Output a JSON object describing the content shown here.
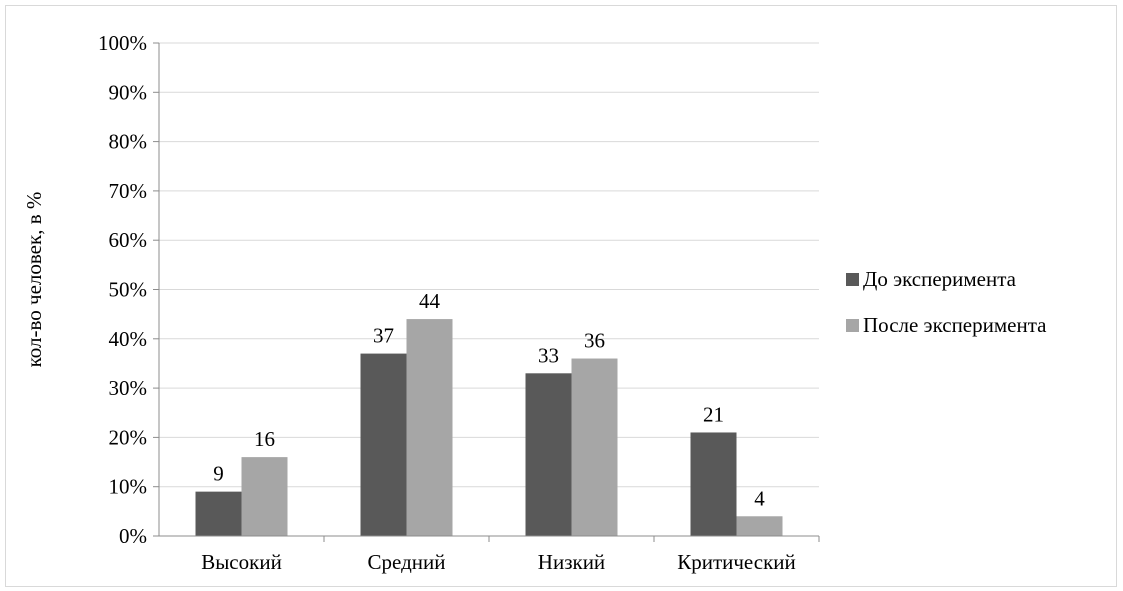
{
  "chart_data": {
    "type": "bar",
    "title": "",
    "xlabel": "",
    "ylabel": "кол-во человек, в %",
    "categories": [
      "Высокий",
      "Средний",
      "Низкий",
      "Критический"
    ],
    "series": [
      {
        "name": "До эксперимента",
        "values": [
          9,
          37,
          33,
          21
        ],
        "color": "#595959"
      },
      {
        "name": "После эксперимента",
        "values": [
          16,
          44,
          36,
          4
        ],
        "color": "#a6a6a6"
      }
    ],
    "data_labels": [
      [
        "9",
        "37",
        "33",
        "21"
      ],
      [
        "16",
        "44",
        "36",
        "4"
      ]
    ],
    "ylim": [
      0,
      100
    ],
    "y_ticks": [
      "0%",
      "10%",
      "20%",
      "30%",
      "40%",
      "50%",
      "60%",
      "70%",
      "80%",
      "90%",
      "100%"
    ],
    "grid": true,
    "legend_position": "right",
    "gridline_color": "#d9d9d9"
  }
}
